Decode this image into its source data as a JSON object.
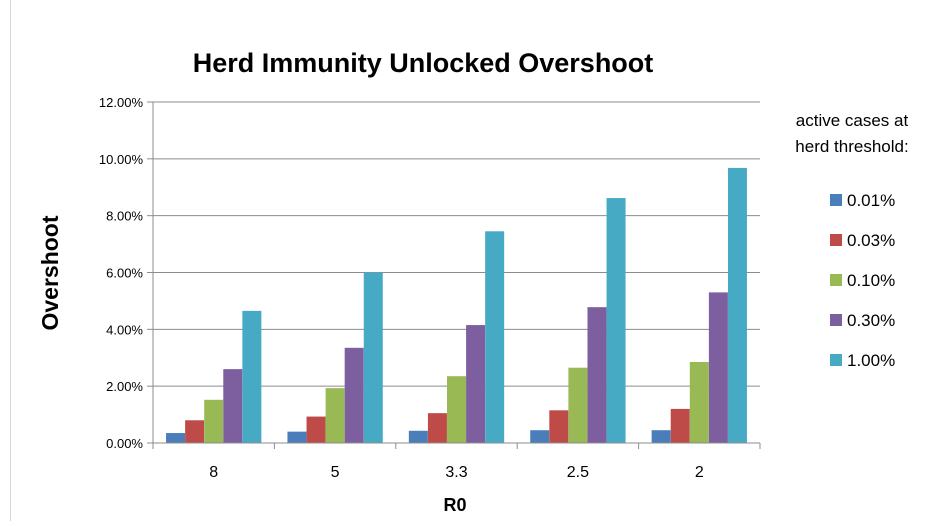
{
  "chart_data": {
    "type": "bar",
    "title": "Herd Immunity  Unlocked Overshoot",
    "xlabel": "R0",
    "ylabel": "Overshoot",
    "categories": [
      "8",
      "5",
      "3.3",
      "2.5",
      "2"
    ],
    "ylim": [
      0,
      12
    ],
    "yticks": [
      0,
      2,
      4,
      6,
      8,
      10,
      12
    ],
    "ytick_labels": [
      "0.00%",
      "2.00%",
      "4.00%",
      "6.00%",
      "8.00%",
      "10.00%",
      "12.00%"
    ],
    "grid": true,
    "legend_position": "right",
    "legend_title": [
      "active cases at",
      "herd threshold:"
    ],
    "series": [
      {
        "name": "0.01%",
        "color": "#4a7ebb",
        "values": [
          0.35,
          0.4,
          0.43,
          0.45,
          0.45
        ]
      },
      {
        "name": "0.03%",
        "color": "#be4b48",
        "values": [
          0.8,
          0.93,
          1.05,
          1.15,
          1.2
        ]
      },
      {
        "name": "0.10%",
        "color": "#98b954",
        "values": [
          1.52,
          1.93,
          2.35,
          2.65,
          2.85
        ]
      },
      {
        "name": "0.30%",
        "color": "#7d5fa0",
        "values": [
          2.6,
          3.35,
          4.15,
          4.78,
          5.3
        ]
      },
      {
        "name": "1.00%",
        "color": "#46aac5",
        "values": [
          4.65,
          6.0,
          7.45,
          8.62,
          9.68
        ]
      }
    ]
  }
}
